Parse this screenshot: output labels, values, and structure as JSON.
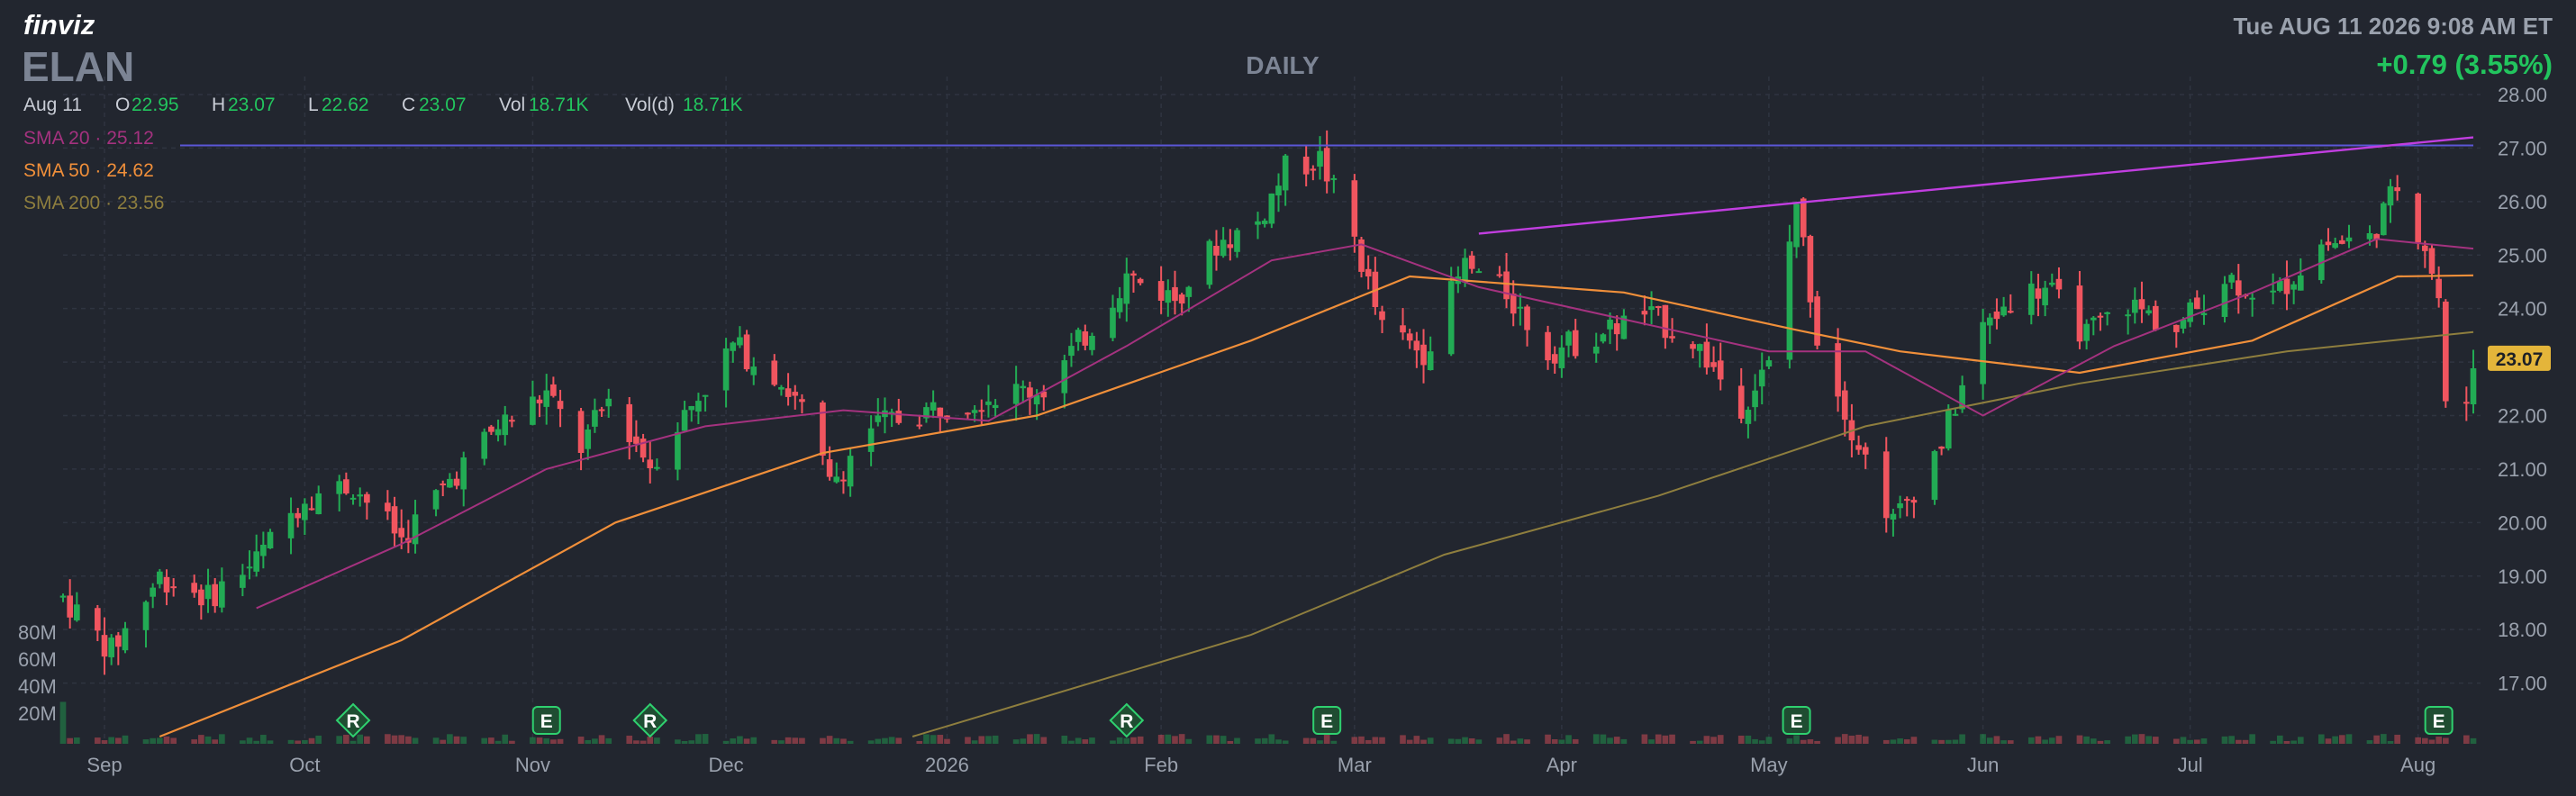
{
  "header": {
    "brand": "finviz",
    "ticker": "ELAN",
    "timeframe": "DAILY",
    "datetime": "Tue AUG 11 2026 9:08 AM ET",
    "change": "+0.79 (3.55%)",
    "ohlc": {
      "date": "Aug 11",
      "open_label": "O",
      "open": "22.95",
      "high_label": "H",
      "high": "23.07",
      "low_label": "L",
      "low": "22.62",
      "close_label": "C",
      "close": "23.07",
      "vol_label": "Vol",
      "vol": "18.71K",
      "vold_label": "Vol(d)",
      "vold": "18.71K"
    },
    "sma": [
      {
        "label": "SMA 20",
        "value": "25.12"
      },
      {
        "label": "SMA 50",
        "value": "24.62"
      },
      {
        "label": "SMA 200",
        "value": "23.56"
      }
    ]
  },
  "colors": {
    "background": "#22262f",
    "grid": "#2f3440",
    "up": "#22ab54",
    "down": "#f0555f",
    "sma20": "#a4327f",
    "sma50": "#f08f3a",
    "sma200": "#8e7e3e",
    "trendline": "#c13ee0",
    "hline": "#5b56d6",
    "price_badge": "#e4b53a",
    "positive": "#22c55e"
  },
  "chart_data": {
    "type": "candlestick",
    "title": "ELAN",
    "ylim": [
      16.0,
      28.0
    ],
    "yticks": [
      "28.00",
      "27.00",
      "26.00",
      "25.00",
      "24.00",
      "23.00",
      "22.00",
      "21.00",
      "20.00",
      "19.00",
      "18.00",
      "17.00"
    ],
    "last_price": "23.07",
    "volume_ticks": [
      "80M",
      "60M",
      "40M",
      "20M"
    ],
    "x_start": "2025-08-27",
    "x_end": "2026-08-11",
    "x_labels": [
      {
        "label": "Sep",
        "date": "2025-09-02"
      },
      {
        "label": "Oct",
        "date": "2025-10-01"
      },
      {
        "label": "Nov",
        "date": "2025-11-03"
      },
      {
        "label": "Dec",
        "date": "2025-12-01"
      },
      {
        "label": "2026",
        "date": "2026-01-02"
      },
      {
        "label": "Feb",
        "date": "2026-02-02"
      },
      {
        "label": "Mar",
        "date": "2026-03-02"
      },
      {
        "label": "Apr",
        "date": "2026-04-01"
      },
      {
        "label": "May",
        "date": "2026-05-01"
      },
      {
        "label": "Jun",
        "date": "2026-06-01"
      },
      {
        "label": "Jul",
        "date": "2026-07-01"
      },
      {
        "label": "Aug",
        "date": "2026-08-03"
      }
    ],
    "price_path": [
      [
        "2025-08-27",
        18.6
      ],
      [
        "2025-09-03",
        17.6
      ],
      [
        "2025-09-10",
        19.0
      ],
      [
        "2025-09-17",
        18.6
      ],
      [
        "2025-09-24",
        19.3
      ],
      [
        "2025-10-01",
        20.5
      ],
      [
        "2025-10-08",
        20.7
      ],
      [
        "2025-10-15",
        19.7
      ],
      [
        "2025-10-22",
        20.8
      ],
      [
        "2025-10-29",
        21.8
      ],
      [
        "2025-11-05",
        22.4
      ],
      [
        "2025-11-10",
        21.4
      ],
      [
        "2025-11-14",
        22.3
      ],
      [
        "2025-11-20",
        21.1
      ],
      [
        "2025-11-26",
        22.2
      ],
      [
        "2025-12-02",
        23.3
      ],
      [
        "2025-12-08",
        22.8
      ],
      [
        "2025-12-12",
        22.1
      ],
      [
        "2025-12-16",
        20.7
      ],
      [
        "2025-12-22",
        21.8
      ],
      [
        "2026-01-02",
        22.2
      ],
      [
        "2026-01-09",
        22.4
      ],
      [
        "2026-01-16",
        22.5
      ],
      [
        "2026-01-22",
        23.5
      ],
      [
        "2026-01-28",
        24.6
      ],
      [
        "2026-02-04",
        24.2
      ],
      [
        "2026-02-10",
        25.2
      ],
      [
        "2026-02-16",
        25.6
      ],
      [
        "2026-02-20",
        26.6
      ],
      [
        "2026-02-25",
        26.8
      ],
      [
        "2026-03-02",
        25.3
      ],
      [
        "2026-03-06",
        23.6
      ],
      [
        "2026-03-12",
        23.2
      ],
      [
        "2026-03-18",
        24.8
      ],
      [
        "2026-03-24",
        24.3
      ],
      [
        "2026-03-30",
        23.2
      ],
      [
        "2026-04-06",
        23.5
      ],
      [
        "2026-04-13",
        23.9
      ],
      [
        "2026-04-20",
        23.4
      ],
      [
        "2026-04-27",
        22.2
      ],
      [
        "2026-05-01",
        22.9
      ],
      [
        "2026-05-05",
        26.0
      ],
      [
        "2026-05-08",
        23.5
      ],
      [
        "2026-05-13",
        21.8
      ],
      [
        "2026-05-19",
        20.0
      ],
      [
        "2026-05-26",
        21.5
      ],
      [
        "2026-06-01",
        23.6
      ],
      [
        "2026-06-05",
        24.2
      ],
      [
        "2026-06-10",
        24.4
      ],
      [
        "2026-06-16",
        23.5
      ],
      [
        "2026-06-22",
        24.1
      ],
      [
        "2026-06-29",
        23.6
      ],
      [
        "2026-07-06",
        24.6
      ],
      [
        "2026-07-13",
        24.2
      ],
      [
        "2026-07-20",
        25.2
      ],
      [
        "2026-07-27",
        25.3
      ],
      [
        "2026-07-31",
        26.3
      ],
      [
        "2026-08-04",
        25.2
      ],
      [
        "2026-08-06",
        24.2
      ],
      [
        "2026-08-07",
        22.1
      ],
      [
        "2026-08-10",
        22.3
      ],
      [
        "2026-08-11",
        23.07
      ]
    ],
    "sma20_path": [
      [
        "2025-09-24",
        18.4
      ],
      [
        "2025-10-15",
        19.6
      ],
      [
        "2025-11-05",
        21.0
      ],
      [
        "2025-11-28",
        21.8
      ],
      [
        "2025-12-18",
        22.1
      ],
      [
        "2026-01-08",
        21.9
      ],
      [
        "2026-01-28",
        23.3
      ],
      [
        "2026-02-18",
        24.9
      ],
      [
        "2026-03-03",
        25.2
      ],
      [
        "2026-03-20",
        24.4
      ],
      [
        "2026-04-10",
        23.8
      ],
      [
        "2026-05-01",
        23.2
      ],
      [
        "2026-05-15",
        23.2
      ],
      [
        "2026-06-01",
        22.0
      ],
      [
        "2026-06-20",
        23.3
      ],
      [
        "2026-07-10",
        24.3
      ],
      [
        "2026-07-28",
        25.3
      ],
      [
        "2026-08-11",
        25.12
      ]
    ],
    "sma50_path": [
      [
        "2025-09-10",
        16.0
      ],
      [
        "2025-10-15",
        17.8
      ],
      [
        "2025-11-15",
        20.0
      ],
      [
        "2025-12-15",
        21.3
      ],
      [
        "2026-01-15",
        22.0
      ],
      [
        "2026-02-15",
        23.4
      ],
      [
        "2026-03-10",
        24.6
      ],
      [
        "2026-04-10",
        24.3
      ],
      [
        "2026-05-05",
        23.6
      ],
      [
        "2026-05-20",
        23.2
      ],
      [
        "2026-06-15",
        22.8
      ],
      [
        "2026-07-10",
        23.4
      ],
      [
        "2026-07-31",
        24.6
      ],
      [
        "2026-08-11",
        24.62
      ]
    ],
    "sma200_path": [
      [
        "2025-12-28",
        16.0
      ],
      [
        "2026-02-15",
        17.9
      ],
      [
        "2026-03-15",
        19.4
      ],
      [
        "2026-04-15",
        20.5
      ],
      [
        "2026-05-15",
        21.8
      ],
      [
        "2026-06-15",
        22.6
      ],
      [
        "2026-07-15",
        23.2
      ],
      [
        "2026-08-11",
        23.56
      ]
    ],
    "horizontal_line": 27.05,
    "trendline": [
      [
        "2026-03-20",
        25.4
      ],
      [
        "2026-08-11",
        27.2
      ]
    ],
    "events": [
      {
        "label": "R",
        "date": "2025-10-08"
      },
      {
        "label": "E",
        "date": "2025-11-05"
      },
      {
        "label": "R",
        "date": "2025-11-20"
      },
      {
        "label": "R",
        "date": "2026-01-28"
      },
      {
        "label": "E",
        "date": "2026-02-26"
      },
      {
        "label": "E",
        "date": "2026-05-05"
      },
      {
        "label": "E",
        "date": "2026-08-06"
      }
    ]
  }
}
